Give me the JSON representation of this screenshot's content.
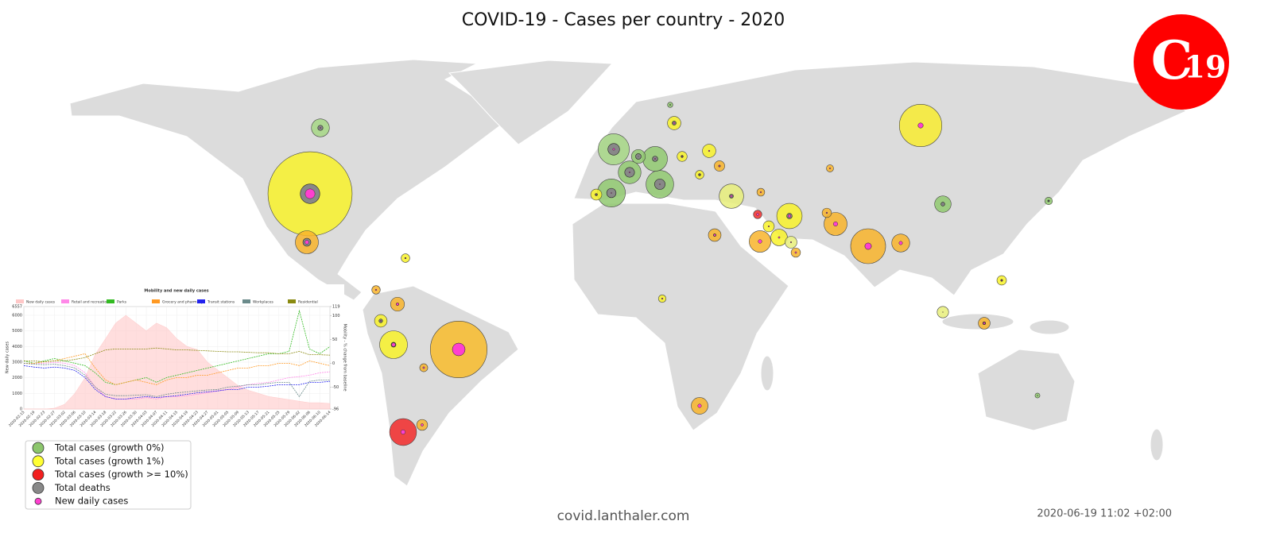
{
  "chart_data": [
    {
      "type": "bubble-map",
      "title": "COVID-19 - Cases per country - 2020",
      "legend": [
        {
          "label": "Total cases (growth 0%)",
          "color": "#8cc66c"
        },
        {
          "label": "Total cases (growth 1%)",
          "color": "#ffff33"
        },
        {
          "label": "Total cases (growth >= 10%)",
          "color": "#f21f1f"
        },
        {
          "label": "Total deaths",
          "color": "#888888"
        },
        {
          "label": "New daily cases",
          "color": "#ff3fd0"
        }
      ],
      "cases": [
        2200000,
        1000000,
        560000,
        380000,
        300000,
        245000,
        238000,
        240000,
        225000,
        200000,
        190000,
        185000,
        165000,
        165000,
        145000,
        160000,
        100000,
        100000,
        84000,
        87000,
        85000,
        60000,
        60000,
        56000,
        56000,
        50000,
        49000,
        37000,
        43000,
        44000,
        38000,
        34000,
        38000,
        41000,
        28000,
        20000,
        22000,
        17600,
        23000,
        7400,
        27000,
        27000,
        16000,
        18000,
        19000,
        22000,
        31000,
        23000,
        8700
      ],
      "deaths": [
        118000,
        48000,
        7600,
        12600,
        42000,
        27000,
        34500,
        7200,
        3800,
        9300,
        8900,
        4900,
        19700,
        3200,
        1100,
        29600,
        8300,
        1300,
        4600,
        1800,
        90,
        1900,
        9700,
        5000,
        330,
        1900,
        4100,
        950,
        2300,
        300,
        1500,
        970,
        310,
        26,
        1100,
        650,
        450,
        930,
        600,
        102,
        120,
        500,
        90,
        470,
        310,
        700,
        1300,
        1400,
        245
      ],
      "new_cases": [
        30000,
        50000,
        8000,
        13000,
        1200,
        300,
        300,
        4000,
        6300,
        2600,
        600,
        1200,
        5000,
        6000,
        4300,
        500,
        400,
        3800,
        30,
        4000,
        1000,
        2000,
        100,
        1000,
        700,
        1500,
        500,
        2000,
        1300,
        400,
        300,
        800,
        500,
        150,
        500,
        1000,
        700,
        40,
        400,
        20,
        1000,
        600,
        500,
        600,
        600,
        1500,
        400,
        300,
        20
      ],
      "colors": [
        "#f8f22a",
        "#f8bc2c",
        "#f8ec30",
        "#f8b42c",
        "#a6d785",
        "#90c970",
        "#90c970",
        "#f8f22a",
        "#f22a2a",
        "#f8f22a",
        "#90c970",
        "#e8ef7a",
        "#f8b42c",
        "#f8b42c",
        "#f8b42c",
        "#90c970",
        "#a6d785",
        "#f8b42c",
        "#90c970",
        "#f8b42c",
        "#f8f22a",
        "#f8b42c",
        "#90c970",
        "#f8f22a",
        "#f8f22a",
        "#f8b42c",
        "#f8f22a",
        "#f8b42c",
        "#f8b42c",
        "#e8ef7a",
        "#f8f22a",
        "#f8b42c",
        "#f8f22a",
        "#e8ef7a",
        "#f8f22a",
        "#f8b42c",
        "#f8b42c",
        "#90c970",
        "#f8f22a",
        "#90c970",
        "#f8b42c",
        "#f8b42c",
        "#f8b42c",
        "#f8f22a",
        "#f8b42c",
        "#f22a2a",
        "#f8f22a",
        "#f8f22a",
        "#90c970"
      ]
    },
    {
      "type": "line",
      "title": "Mobility and new daily cases",
      "ylabel": "New daily cases",
      "y2label": "Mobility - % change from baseline",
      "categories": [
        "2020-02-15",
        "2020-02-19",
        "2020-02-23",
        "2020-02-27",
        "2020-03-02",
        "2020-03-06",
        "2020-03-10",
        "2020-03-14",
        "2020-03-18",
        "2020-03-22",
        "2020-03-26",
        "2020-03-30",
        "2020-04-03",
        "2020-04-07",
        "2020-04-11",
        "2020-04-15",
        "2020-04-19",
        "2020-04-23",
        "2020-04-27",
        "2020-05-01",
        "2020-05-05",
        "2020-05-09",
        "2020-05-13",
        "2020-05-17",
        "2020-05-21",
        "2020-05-25",
        "2020-05-29",
        "2020-06-02",
        "2020-06-06",
        "2020-06-10",
        "2020-06-14"
      ],
      "ylim": [
        0,
        6557
      ],
      "yticks": [
        0,
        1000,
        2000,
        3000,
        4000,
        5000,
        6000,
        6557
      ],
      "y2lim": [
        -96,
        119
      ],
      "y2ticks": [
        -96,
        -50,
        0,
        50,
        100,
        119
      ],
      "series": [
        {
          "name": "New daily cases",
          "color": "#ffc8c8",
          "values": [
            0,
            0,
            0,
            50,
            300,
            1000,
            2000,
            3500,
            4500,
            5500,
            6000,
            5500,
            5000,
            5500,
            5200,
            4500,
            4000,
            3800,
            3000,
            2500,
            2000,
            1500,
            1200,
            1000,
            800,
            700,
            600,
            500,
            400,
            400,
            350
          ]
        },
        {
          "name": "Retail and recreation",
          "color": "#ff88e8",
          "axis": "y2",
          "values": [
            0,
            0,
            0,
            2,
            0,
            -5,
            -20,
            -50,
            -70,
            -75,
            -75,
            -75,
            -72,
            -75,
            -70,
            -70,
            -68,
            -65,
            -62,
            -58,
            -55,
            -50,
            -45,
            -42,
            -40,
            -35,
            -30,
            -28,
            -25,
            -20,
            -18
          ]
        },
        {
          "name": "Parks",
          "color": "#33bb22",
          "axis": "y2",
          "values": [
            5,
            0,
            5,
            10,
            5,
            0,
            -5,
            -20,
            -40,
            -45,
            -40,
            -35,
            -30,
            -40,
            -30,
            -25,
            -20,
            -15,
            -10,
            -5,
            0,
            5,
            10,
            15,
            20,
            20,
            25,
            110,
            30,
            20,
            35
          ]
        },
        {
          "name": "Grocery and pharmacy",
          "color": "#ff9922",
          "axis": "y2",
          "values": [
            0,
            0,
            3,
            5,
            10,
            15,
            20,
            -10,
            -35,
            -45,
            -40,
            -35,
            -40,
            -45,
            -35,
            -30,
            -30,
            -25,
            -25,
            -20,
            -15,
            -10,
            -10,
            -5,
            -5,
            0,
            0,
            -5,
            5,
            0,
            -5
          ]
        },
        {
          "name": "Transit stations",
          "color": "#2222ee",
          "axis": "y2",
          "values": [
            -5,
            -8,
            -10,
            -8,
            -10,
            -15,
            -30,
            -55,
            -70,
            -75,
            -75,
            -72,
            -70,
            -72,
            -70,
            -68,
            -65,
            -62,
            -60,
            -58,
            -55,
            -55,
            -50,
            -50,
            -48,
            -45,
            -45,
            -45,
            -40,
            -40,
            -38
          ]
        },
        {
          "name": "Workplaces",
          "color": "#6a8a8a",
          "axis": "y2",
          "values": [
            0,
            -2,
            -3,
            -2,
            -5,
            -10,
            -25,
            -50,
            -65,
            -68,
            -68,
            -67,
            -66,
            -70,
            -65,
            -62,
            -60,
            -58,
            -56,
            -55,
            -50,
            -48,
            -45,
            -45,
            -42,
            -40,
            -40,
            -70,
            -38,
            -35,
            -35
          ]
        },
        {
          "name": "Residential",
          "color": "#8a8a10",
          "axis": "y2",
          "values": [
            5,
            5,
            3,
            5,
            5,
            8,
            12,
            20,
            28,
            30,
            30,
            30,
            30,
            32,
            30,
            28,
            28,
            27,
            26,
            25,
            24,
            24,
            23,
            22,
            22,
            20,
            20,
            25,
            18,
            18,
            17
          ]
        }
      ]
    }
  ],
  "logo": {
    "letter": "C",
    "number": "19"
  },
  "footer": {
    "url": "covid.lanthaler.com",
    "timestamp": "2020-06-19 11:02 +02:00"
  }
}
